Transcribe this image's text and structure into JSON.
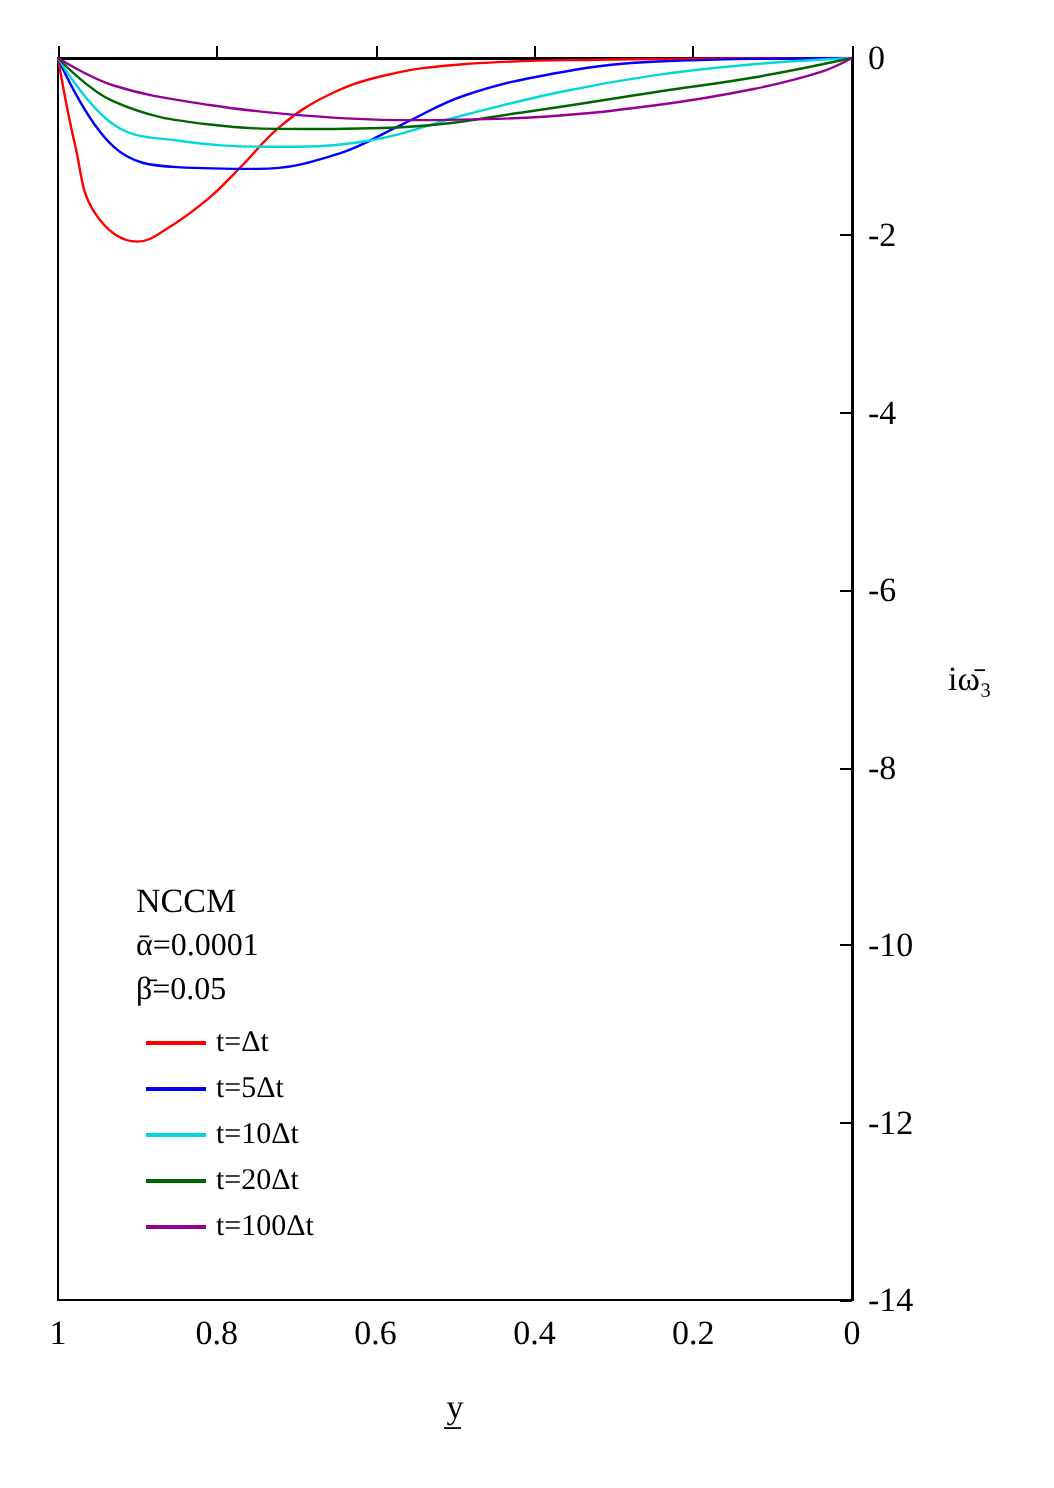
{
  "chart_data": {
    "type": "line",
    "xlabel": "y̲",
    "ylabel": "iω̄₃",
    "legend_title": "NCCM",
    "annotations": [
      "ᾱ=0.0001",
      "β̄=0.05"
    ],
    "xlim": [
      1,
      0
    ],
    "xticks": [
      1,
      0.8,
      0.6,
      0.4,
      0.2,
      0
    ],
    "ylim": [
      -14,
      0
    ],
    "yticks": [
      -14,
      -12,
      -10,
      -8,
      -6,
      -4,
      -2,
      0
    ],
    "legend": "bottom left",
    "marker": "none",
    "line_style": "solid",
    "grid": false,
    "series": [
      {
        "name": "t=Δt",
        "color": "#ff0000",
        "x": [
          1,
          0.978,
          0.954,
          0.9,
          0.857,
          0.81,
          0.77,
          0.72,
          0.66,
          0.59,
          0.49,
          0.32,
          0
        ],
        "values": [
          0,
          -1.0,
          -1.74,
          -2.07,
          -1.89,
          -1.58,
          -1.23,
          -0.77,
          -0.42,
          -0.2,
          -0.07,
          -0.02,
          0
        ]
      },
      {
        "name": "t=5Δt",
        "color": "#0000ff",
        "x": [
          1,
          0.93,
          0.85,
          0.748,
          0.647,
          0.567,
          0.487,
          0.366,
          0.245,
          0
        ],
        "values": [
          0,
          -1.0,
          -1.23,
          -1.25,
          -1.08,
          -0.75,
          -0.42,
          -0.16,
          -0.04,
          0
        ]
      },
      {
        "name": "t=10Δt",
        "color": "#00d8d8",
        "x": [
          1,
          0.93,
          0.85,
          0.729,
          0.607,
          0.487,
          0.366,
          0.245,
          0.124,
          0
        ],
        "values": [
          0,
          -0.75,
          -0.93,
          -1.0,
          -0.93,
          -0.64,
          -0.38,
          -0.19,
          -0.07,
          0
        ]
      },
      {
        "name": "t=20Δt",
        "color": "#006400",
        "x": [
          1,
          0.93,
          0.809,
          0.688,
          0.567,
          0.405,
          0.245,
          0.124,
          0
        ],
        "values": [
          0,
          -0.49,
          -0.75,
          -0.8,
          -0.78,
          -0.6,
          -0.38,
          -0.22,
          0
        ]
      },
      {
        "name": "t=100Δt",
        "color": "#940094",
        "x": [
          1,
          0.93,
          0.809,
          0.688,
          0.567,
          0.405,
          0.245,
          0.124,
          0.04,
          0
        ],
        "values": [
          0,
          -0.31,
          -0.53,
          -0.65,
          -0.7,
          -0.67,
          -0.53,
          -0.35,
          -0.16,
          0
        ]
      }
    ]
  }
}
